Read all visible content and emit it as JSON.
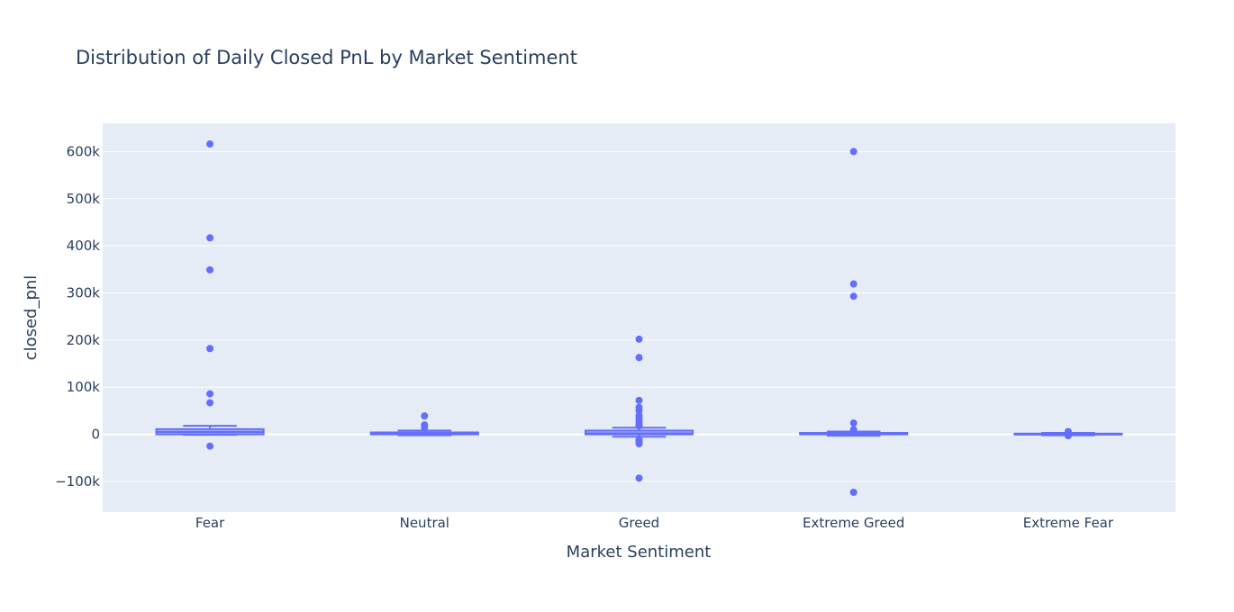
{
  "chart_data": {
    "type": "box",
    "title": "Distribution of Daily Closed PnL by Market Sentiment",
    "xlabel": "Market Sentiment",
    "ylabel": "closed_pnl",
    "ylim": [
      -165000,
      660000
    ],
    "yticks": [
      -100000,
      0,
      100000,
      200000,
      300000,
      400000,
      500000,
      600000
    ],
    "ytick_labels": [
      "−100k",
      "0",
      "100k",
      "200k",
      "300k",
      "400k",
      "500k",
      "600k"
    ],
    "grid": true,
    "legend": "none",
    "colors": {
      "box": "#636efa",
      "plot_bg": "#e5ecf6",
      "grid": "#ffffff"
    },
    "categories": [
      "Fear",
      "Neutral",
      "Greed",
      "Extreme Greed",
      "Extreme Fear"
    ],
    "boxes": [
      {
        "category": "Fear",
        "min": -1000,
        "q1": 0,
        "median": 5000,
        "q3": 11000,
        "max": 18000,
        "outliers": [
          616000,
          417000,
          349000,
          182000,
          86000,
          67000,
          -25000
        ]
      },
      {
        "category": "Neutral",
        "min": -2000,
        "q1": 0,
        "median": 1000,
        "q3": 4000,
        "max": 8000,
        "outliers": [
          39000,
          20000,
          15000
        ]
      },
      {
        "category": "Greed",
        "min": -5000,
        "q1": 0,
        "median": 2000,
        "q3": 8000,
        "max": 14000,
        "outliers": [
          202000,
          163000,
          72000,
          57000,
          50000,
          40000,
          34000,
          28000,
          22000,
          18000,
          -12000,
          -16000,
          -20000,
          -93000
        ]
      },
      {
        "category": "Extreme Greed",
        "min": -3000,
        "q1": 0,
        "median": 1000,
        "q3": 3000,
        "max": 6000,
        "outliers": [
          600000,
          319000,
          293000,
          24000,
          10000,
          -123000
        ]
      },
      {
        "category": "Extreme Fear",
        "min": -2000,
        "q1": -500,
        "median": 500,
        "q3": 1500,
        "max": 3000,
        "outliers": [
          6000,
          2000,
          -3000
        ]
      }
    ]
  }
}
